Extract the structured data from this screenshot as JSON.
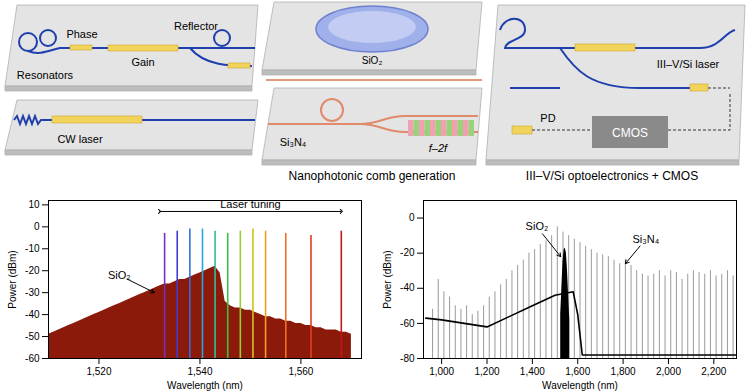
{
  "diagram": {
    "laser_panel": {
      "resonators": "Resonators",
      "phase": "Phase",
      "gain": "Gain",
      "reflector": "Reflector",
      "cw": "CW laser"
    },
    "comb_panel": {
      "sio2": "SiO₂",
      "si3n4": "Si₃N₄",
      "f2f": "f–2f",
      "caption": "Nanophotonic comb generation"
    },
    "opto_panel": {
      "laser": "III–V/Si laser",
      "pd": "PD",
      "cmos": "CMOS",
      "caption": "III–V/Si optoelectronics + CMOS"
    }
  },
  "chart_data": [
    {
      "type": "spectrum",
      "x_label": "Wavelength (nm)",
      "y_label": "Power (dBm)",
      "xlim": [
        1510,
        1572
      ],
      "xticks": [
        {
          "value": 1520,
          "label": "1,520"
        },
        {
          "value": 1540,
          "label": "1,540"
        },
        {
          "value": 1560,
          "label": "1,560"
        }
      ],
      "ylim": [
        -60,
        12
      ],
      "yticks": [
        -60,
        -50,
        -40,
        -30,
        -20,
        -10,
        0,
        10
      ],
      "series": [
        {
          "name": "SiO₂",
          "type": "area",
          "color": "#8b1a0a",
          "label_at": [
            1524,
            -22
          ],
          "arrow_to": [
            1531,
            -30
          ],
          "x": [
            1510,
            1511,
            1512,
            1513,
            1514,
            1515,
            1516,
            1517,
            1518,
            1519,
            1520,
            1521,
            1522,
            1523,
            1524,
            1525,
            1526,
            1527,
            1528,
            1529,
            1530,
            1531,
            1532,
            1533,
            1534,
            1535,
            1536,
            1537,
            1538,
            1539,
            1540,
            1541,
            1542,
            1543,
            1544,
            1545,
            1546,
            1547,
            1548,
            1549,
            1550,
            1551,
            1552,
            1553,
            1554,
            1555,
            1556,
            1557,
            1558,
            1559,
            1560,
            1561,
            1562,
            1563,
            1564,
            1565,
            1566,
            1567,
            1568,
            1569,
            1570
          ],
          "values": [
            -49,
            -48,
            -47,
            -46,
            -45,
            -44,
            -43,
            -42,
            -41,
            -40,
            -39,
            -38,
            -37,
            -36,
            -35,
            -34,
            -33,
            -32,
            -31,
            -30,
            -29,
            -28,
            -27,
            -26,
            -26,
            -25,
            -24,
            -24,
            -23,
            -22,
            -21,
            -20,
            -19,
            -18,
            -21,
            -34,
            -36,
            -37,
            -37,
            -38,
            -38,
            -39,
            -40,
            -41,
            -41,
            -42,
            -42,
            -43,
            -43,
            -44,
            -44,
            -45,
            -45,
            -46,
            -46,
            -47,
            -47,
            -47,
            -48,
            -48,
            -49
          ]
        },
        {
          "name": "Laser tuning",
          "type": "spike",
          "label_at": [
            1550,
            7
          ],
          "span": [
            1532,
            1568
          ],
          "colors": [
            "#7b2fbf",
            "#3b3bd6",
            "#2f6fe0",
            "#28a8d8",
            "#2fbf9a",
            "#3fbf3f",
            "#9acd32",
            "#d4c21a",
            "#f0a020",
            "#f07020",
            "#e04020",
            "#c01818"
          ],
          "x": [
            1533,
            1535.5,
            1538,
            1540.5,
            1543,
            1545.5,
            1548,
            1550.5,
            1553,
            1557,
            1562,
            1568
          ],
          "values": [
            -3,
            -2,
            -1,
            -1,
            -2,
            -3,
            -2,
            -1,
            -2,
            -3,
            -4,
            -2
          ]
        }
      ]
    },
    {
      "type": "spectrum",
      "x_label": "Wavelength (nm)",
      "y_label": "Power (dBm)",
      "xlim": [
        920,
        2300
      ],
      "xticks": [
        {
          "value": 1000,
          "label": "1,000"
        },
        {
          "value": 1200,
          "label": "1,200"
        },
        {
          "value": 1400,
          "label": "1,400"
        },
        {
          "value": 1600,
          "label": "1,600"
        },
        {
          "value": 1800,
          "label": "1,800"
        },
        {
          "value": 2000,
          "label": "2,000"
        },
        {
          "value": 2200,
          "label": "2,200"
        }
      ],
      "ylim": [
        -80,
        10
      ],
      "yticks": [
        -80,
        -60,
        -40,
        -20,
        0
      ],
      "series": [
        {
          "name": "Si₃N₄",
          "type": "spike",
          "color": "#9a9a9a",
          "label_at": [
            1900,
            -12
          ],
          "arrow_to": [
            1810,
            -26
          ],
          "x": [
            960,
            985,
            1010,
            1035,
            1060,
            1085,
            1110,
            1135,
            1160,
            1185,
            1210,
            1235,
            1260,
            1285,
            1310,
            1335,
            1360,
            1385,
            1410,
            1435,
            1460,
            1485,
            1510,
            1535,
            1560,
            1585,
            1610,
            1635,
            1660,
            1685,
            1710,
            1735,
            1760,
            1785,
            1810,
            1835,
            1860,
            1885,
            1910,
            1935,
            1960,
            1985,
            2010,
            2035,
            2060,
            2085,
            2110,
            2135,
            2160,
            2185,
            2210,
            2235,
            2260,
            2285
          ],
          "values": [
            -52,
            -35,
            -42,
            -45,
            -50,
            -52,
            -50,
            -55,
            -53,
            -50,
            -45,
            -42,
            -38,
            -35,
            -30,
            -27,
            -24,
            -20,
            -18,
            -15,
            -13,
            -10,
            -5,
            -8,
            -10,
            -12,
            -14,
            -16,
            -18,
            -20,
            -21,
            -22,
            -24,
            -26,
            -24,
            -27,
            -30,
            -32,
            -33,
            -32,
            -30,
            -33,
            -30,
            -31,
            -35,
            -32,
            -30,
            -31,
            -32,
            -30,
            -33,
            -32,
            -30,
            -33
          ]
        },
        {
          "type": "line",
          "color": "#000000",
          "x": [
            930,
            1000,
            1100,
            1200,
            1300,
            1400,
            1500,
            1580,
            1600,
            1620,
            2300
          ],
          "values": [
            -57,
            -58,
            -60,
            -62,
            -56,
            -50,
            -44,
            -42,
            -55,
            -78,
            -78
          ]
        },
        {
          "name": "SiO₂",
          "type": "area",
          "color": "#000000",
          "label_at": [
            1420,
            -5
          ],
          "arrow_to": [
            1525,
            -22
          ],
          "x": [
            1525,
            1530,
            1535,
            1540,
            1545,
            1550,
            1555,
            1560,
            1565
          ],
          "values": [
            -55,
            -40,
            -25,
            -18,
            -17,
            -20,
            -30,
            -45,
            -58
          ]
        }
      ]
    }
  ]
}
